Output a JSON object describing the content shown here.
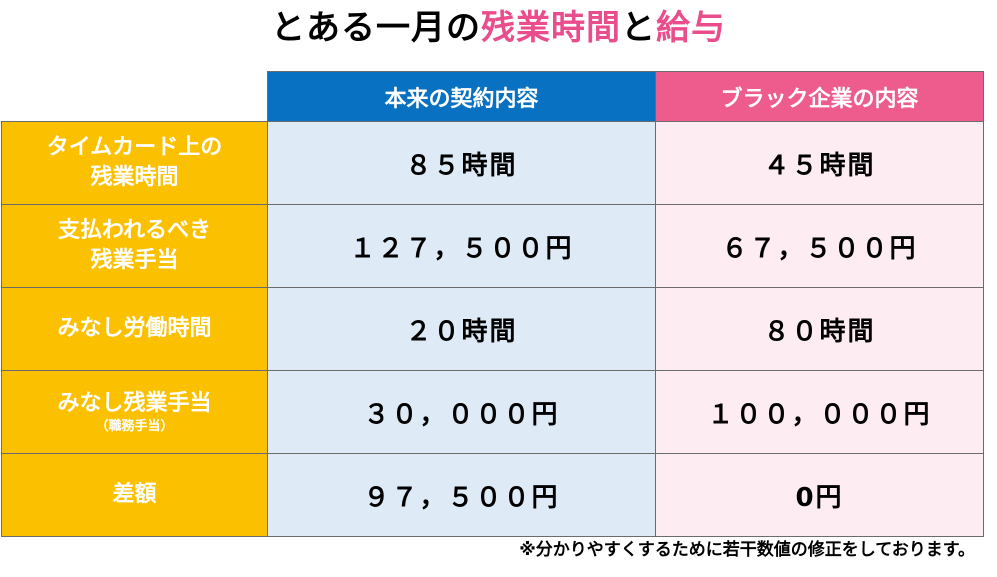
{
  "title": {
    "part1": "とある一月の",
    "part2": "残業時間",
    "part3": "と",
    "part4": "給与"
  },
  "colors": {
    "title_highlight": "#ea4d8c",
    "header_blue": "#0871c2",
    "header_pink": "#ee5c8e",
    "label_yellow": "#fbc000",
    "cell_blue": "#deebf6",
    "cell_pink": "#fdedf3"
  },
  "columns": [
    "本来の契約内容",
    "ブラック企業の内容"
  ],
  "rows": [
    {
      "label_line1": "タイムカード上の",
      "label_line2": "残業時間",
      "label_sub": "",
      "a": "８５時間",
      "b": "４５時間"
    },
    {
      "label_line1": "支払われるべき",
      "label_line2": "残業手当",
      "label_sub": "",
      "a": "１２７，５００円",
      "b": "６７，５００円"
    },
    {
      "label_line1": "みなし労働時間",
      "label_line2": "",
      "label_sub": "",
      "a": "２０時間",
      "b": "８０時間"
    },
    {
      "label_line1": "みなし残業手当",
      "label_line2": "",
      "label_sub": "（職務手当）",
      "a": "３０，０００円",
      "b": "１００，０００円"
    },
    {
      "label_line1": "差額",
      "label_line2": "",
      "label_sub": "",
      "a": "９７，５００円",
      "b": "0円"
    }
  ],
  "note": "※分かりやすくするために若干数値の修正をしております。"
}
